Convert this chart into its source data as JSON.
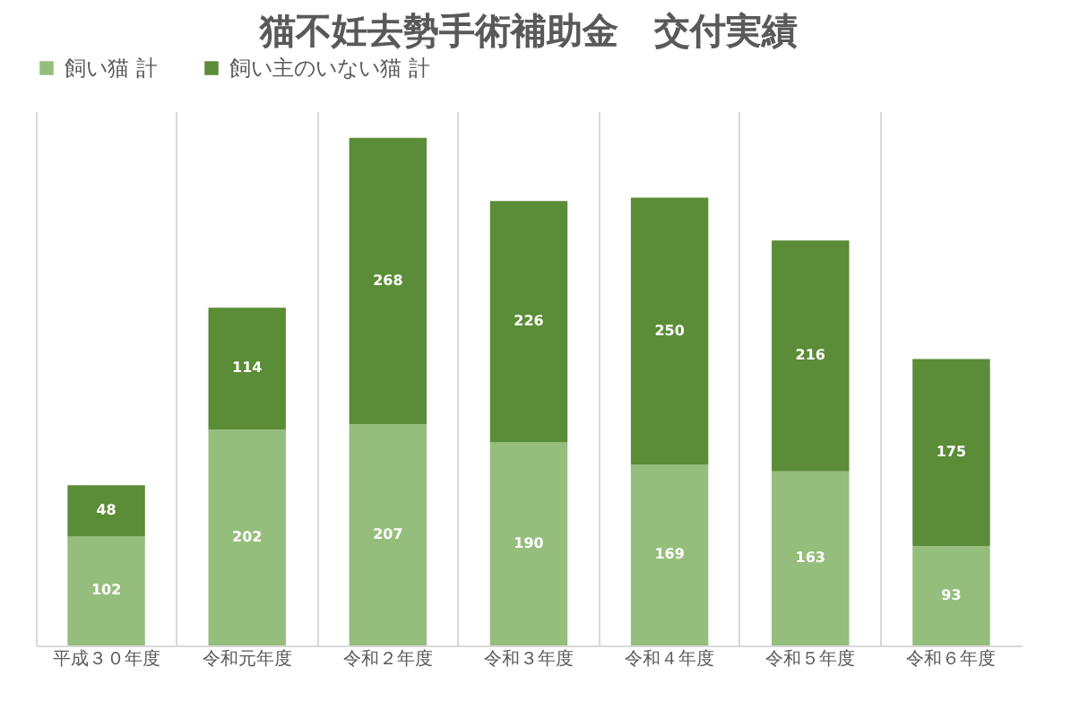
{
  "chart_data": {
    "type": "bar",
    "title": "猫不妊去勢手術補助金　交付実績",
    "stacked": true,
    "data_labels": true,
    "legend": "top",
    "grid": "x",
    "categories": [
      "平成３０年度",
      "令和元年度",
      "令和２年度",
      "令和３年度",
      "令和４年度",
      "令和５年度",
      "令和６年度"
    ],
    "series": [
      {
        "name": "飼い猫 計",
        "color": "#95bd7c",
        "values": [
          102,
          202,
          207,
          190,
          169,
          163,
          93
        ]
      },
      {
        "name": "飼い主のいない猫 計",
        "color": "#5b8c37",
        "values": [
          48,
          114,
          268,
          226,
          250,
          216,
          175
        ]
      }
    ]
  }
}
